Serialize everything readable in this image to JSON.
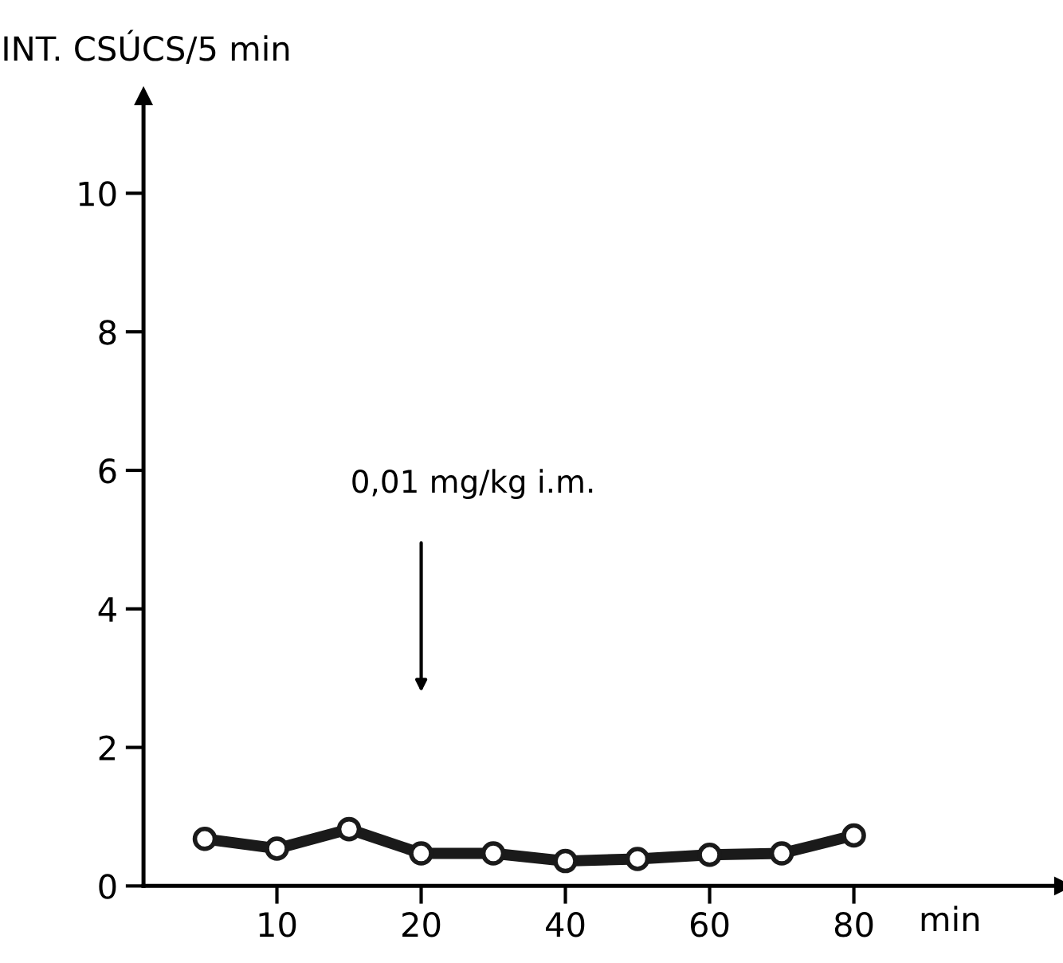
{
  "chart_data": {
    "type": "line",
    "ylabel": "INT. CSÚCS/5 min",
    "xlabel": "min",
    "categories": [
      null,
      "10",
      null,
      "20",
      null,
      "40",
      null,
      "60",
      null,
      "80"
    ],
    "series": [
      {
        "color": "#1a1a1a",
        "values": [
          0.68,
          0.54,
          0.82,
          0.47,
          0.47,
          0.36,
          0.39,
          0.45,
          0.47,
          0.73
        ]
      }
    ],
    "ylim": [
      0,
      11.4
    ],
    "yticks": [
      0,
      2,
      4,
      6,
      8,
      10
    ],
    "annotations": [
      "0,01 mg/kg i.m."
    ],
    "marker": "circle",
    "line_style": "solid",
    "grid": false,
    "legend": false
  }
}
